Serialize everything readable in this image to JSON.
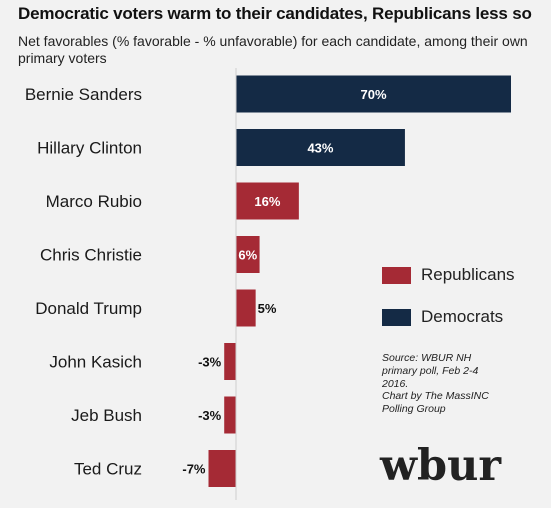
{
  "title": "Democratic voters warm to their candidates, Republicans less so",
  "subtitle": "Net favorables (% favorable - % unfavorable) for each candidate, among their own primary voters",
  "legend": [
    {
      "name": "Republicans",
      "color": "#a52a35"
    },
    {
      "name": "Democrats",
      "color": "#142a45"
    }
  ],
  "source": "Source: WBUR NH primary poll, Feb 2-4 2016.",
  "credit": "Chart by The MassINC Polling Group",
  "logo": "wbur",
  "chart_data": {
    "type": "bar",
    "orientation": "horizontal",
    "title": "Democratic voters warm to their candidates, Republicans less so",
    "categories": [
      "Bernie Sanders",
      "Hillary Clinton",
      "Marco Rubio",
      "Chris Christie",
      "Donald Trump",
      "John Kasich",
      "Jeb Bush",
      "Ted Cruz"
    ],
    "values": [
      70,
      43,
      16,
      6,
      5,
      -3,
      -3,
      -7
    ],
    "labels": [
      "70%",
      "43%",
      "16%",
      "6%",
      "5%",
      "-3%",
      "-3%",
      "-7%"
    ],
    "party": [
      "Democrats",
      "Democrats",
      "Republicans",
      "Republicans",
      "Republicans",
      "Republicans",
      "Republicans",
      "Republicans"
    ],
    "colors": {
      "Democrats": "#142a45",
      "Republicans": "#a52a35"
    },
    "value_unit": "%",
    "grid": false,
    "legend_position": "right"
  }
}
